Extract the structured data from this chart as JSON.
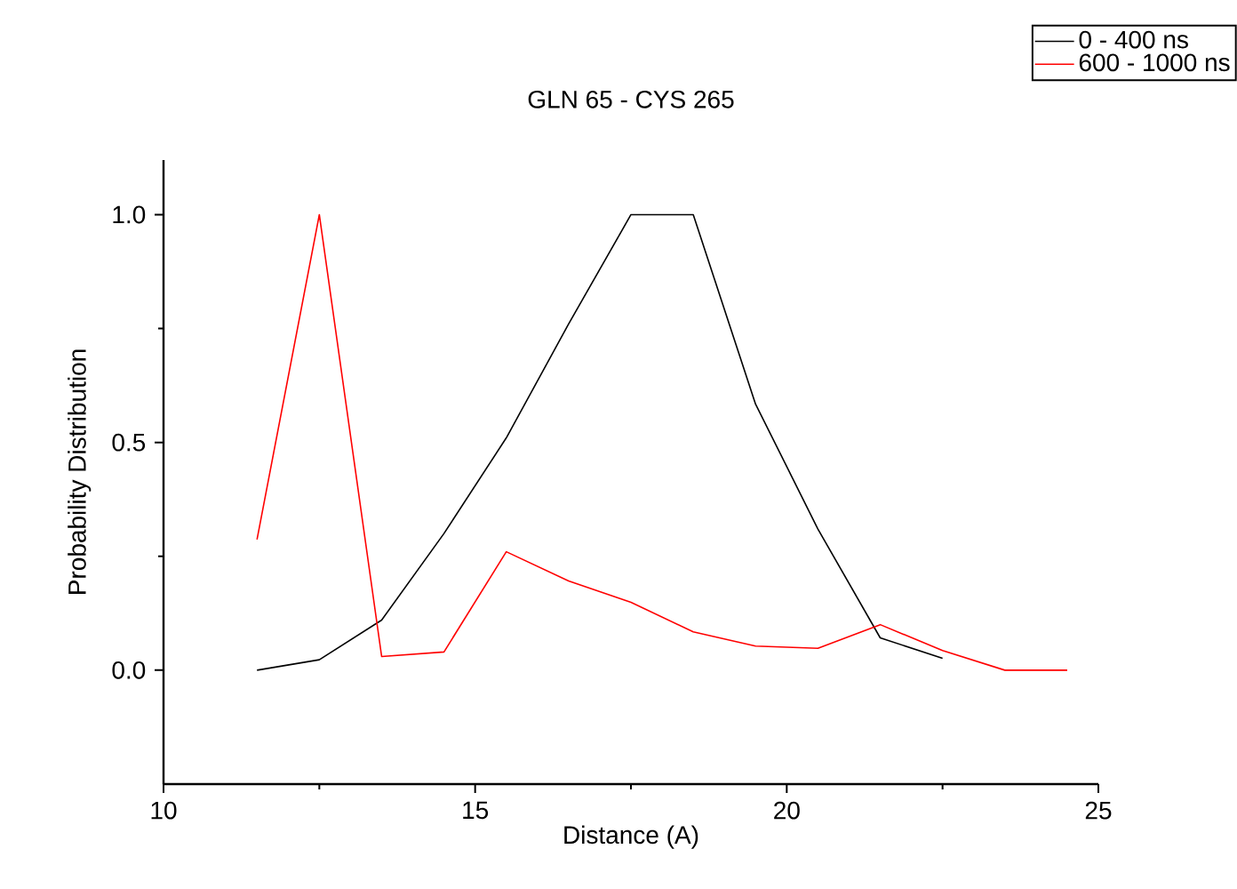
{
  "chart_data": {
    "type": "line",
    "title": "GLN 65 - CYS 265",
    "xlabel": "Distance (A)",
    "ylabel": "Probability Distribution",
    "xlim": [
      10,
      25
    ],
    "ylim": [
      -0.25,
      1.12
    ],
    "xticks": [
      10,
      15,
      20,
      25
    ],
    "yticks": [
      {
        "value": 0,
        "label": "0.0"
      },
      {
        "value": 0.5,
        "label": "0.5"
      },
      {
        "value": 1,
        "label": "1.0"
      }
    ],
    "legend": "top right",
    "series": [
      {
        "name": "0 - 400 ns",
        "color": "#000000",
        "x": [
          11.5,
          12.5,
          13.5,
          14.5,
          15.5,
          16.5,
          17.5,
          18.5,
          19.5,
          20.5,
          21.5,
          22.5
        ],
        "values": [
          0.0,
          0.023,
          0.11,
          0.3,
          0.51,
          0.76,
          1.0,
          1.0,
          0.584,
          0.31,
          0.071,
          0.026
        ]
      },
      {
        "name": "600 - 1000 ns",
        "color": "#ff0000",
        "x": [
          11.5,
          12.5,
          13.5,
          14.5,
          15.5,
          16.5,
          17.5,
          18.5,
          19.5,
          20.5,
          21.5,
          22.5,
          23.5,
          24.5
        ],
        "values": [
          0.287,
          1.0,
          0.03,
          0.04,
          0.26,
          0.196,
          0.149,
          0.084,
          0.053,
          0.048,
          0.1,
          0.043,
          0.0,
          0.0
        ]
      }
    ]
  }
}
